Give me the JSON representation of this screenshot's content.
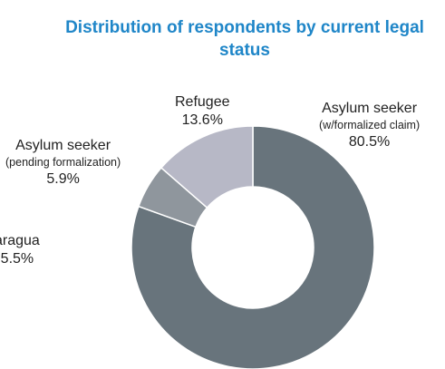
{
  "chart_data": {
    "type": "pie",
    "style": "donut",
    "title": "Distribution of respondents by current legal status",
    "slices": [
      {
        "label": "Asylum seeker",
        "sublabel": "(w/formalized claim)",
        "value": 80.5,
        "value_label": "80.5%",
        "color": "#68747c"
      },
      {
        "label": "Asylum seeker",
        "sublabel": "(pending formalization)",
        "value": 5.9,
        "value_label": "5.9%",
        "color": "#8f969d"
      },
      {
        "label": "Refugee",
        "sublabel": "",
        "value": 13.6,
        "value_label": "13.6%",
        "color": "#b7b8c6"
      }
    ],
    "partial_label": {
      "label": "aragua",
      "value_label": "5.5%"
    }
  }
}
